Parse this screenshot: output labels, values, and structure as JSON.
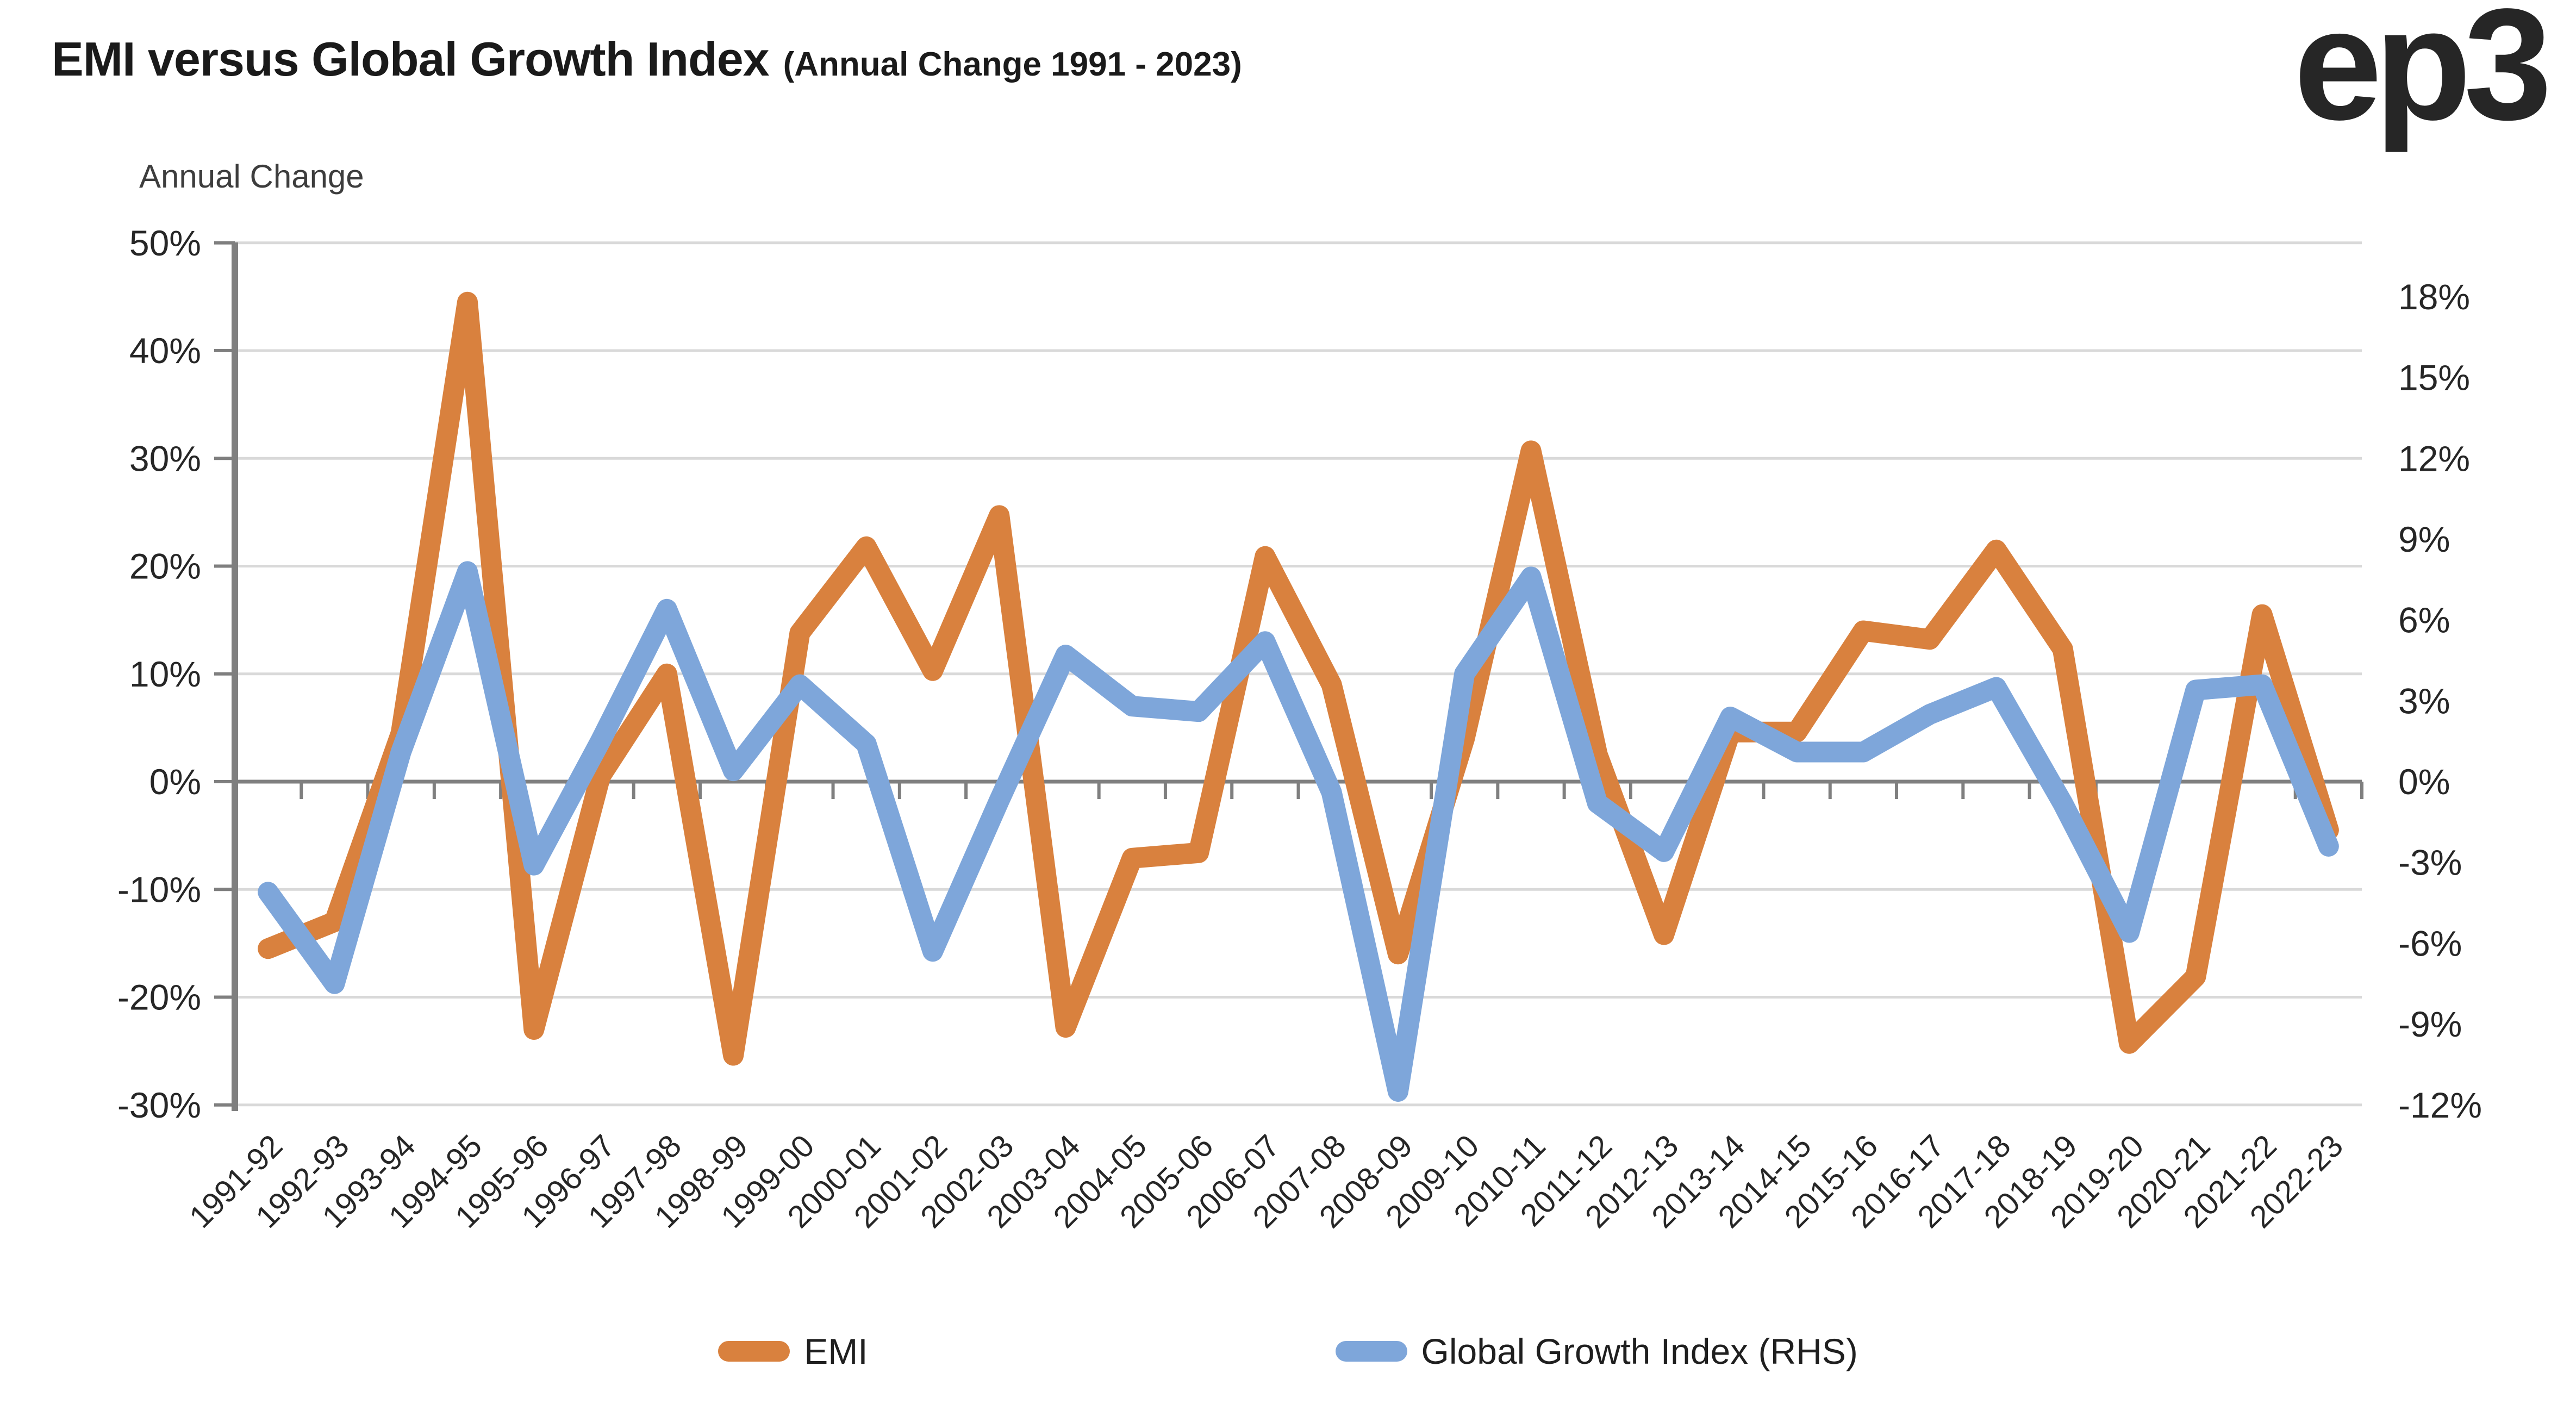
{
  "title": {
    "main": "EMI versus Global Growth Index",
    "sub": "(Annual Change 1991 - 2023)"
  },
  "logo": {
    "text": "ep3"
  },
  "axis_title": "Annual Change",
  "legend": {
    "items": [
      {
        "label": "EMI",
        "color": "#d9813e"
      },
      {
        "label": "Global Growth Index (RHS)",
        "color": "#7ea6da"
      }
    ]
  },
  "colors": {
    "emi_line": "#d9813e",
    "ggi_line": "#7ea6da",
    "gridline": "#d9d9d9",
    "axis": "#7f7f7f",
    "tick_label": "#262626",
    "title_text": "#1a1a1a"
  },
  "chart_data": {
    "type": "line",
    "title": "EMI versus Global Growth Index (Annual Change 1991 - 2023)",
    "ylabel_left": "Annual Change",
    "grid": true,
    "legend_position": "bottom",
    "categories": [
      "1991-92",
      "1992-93",
      "1993-94",
      "1994-95",
      "1995-96",
      "1996-97",
      "1997-98",
      "1998-99",
      "1999-00",
      "2000-01",
      "2001-02",
      "2002-03",
      "2003-04",
      "2004-05",
      "2005-06",
      "2006-07",
      "2007-08",
      "2008-09",
      "2009-10",
      "2010-11",
      "2011-12",
      "2012-13",
      "2013-14",
      "2014-15",
      "2015-16",
      "2016-17",
      "2017-18",
      "2018-19",
      "2019-20",
      "2020-21",
      "2021-22",
      "2022-23"
    ],
    "series": [
      {
        "name": "EMI",
        "axis": "left",
        "color": "#d9813e",
        "values": [
          -15.5,
          -13,
          4.5,
          44.5,
          -23,
          0.5,
          10,
          -25.4,
          13.8,
          21.8,
          10.3,
          24.7,
          -22.8,
          -7.1,
          -6.6,
          20.9,
          9,
          -16,
          4,
          30.7,
          2.5,
          -14.2,
          4.6,
          4.6,
          14,
          13.2,
          21.5,
          12.3,
          -24.3,
          -18.1,
          15.5,
          -4.5
        ]
      },
      {
        "name": "Global Growth Index (RHS)",
        "axis": "right",
        "color": "#7ea6da",
        "values": [
          -4.1,
          -7.5,
          1.1,
          7.8,
          -3.1,
          1.5,
          6.4,
          0.4,
          3.6,
          1.4,
          -6.3,
          -0.7,
          4.7,
          2.8,
          2.6,
          5.2,
          -0.4,
          -11.5,
          4.0,
          7.6,
          -0.8,
          -2.6,
          2.4,
          1.1,
          1.1,
          2.5,
          3.5,
          -0.8,
          -5.6,
          3.4,
          3.6,
          -2.4
        ]
      }
    ],
    "left_axis": {
      "min": -30,
      "max": 50,
      "step": 10,
      "tick_suffix": "%",
      "tick_values": [
        50,
        40,
        30,
        20,
        10,
        0,
        -10,
        -20,
        -30
      ]
    },
    "right_axis": {
      "min": -12,
      "max": 20,
      "step": 3,
      "tick_suffix": "%",
      "tick_values": [
        18,
        15,
        12,
        9,
        6,
        3,
        0,
        -3,
        -6,
        -9,
        -12
      ]
    }
  }
}
